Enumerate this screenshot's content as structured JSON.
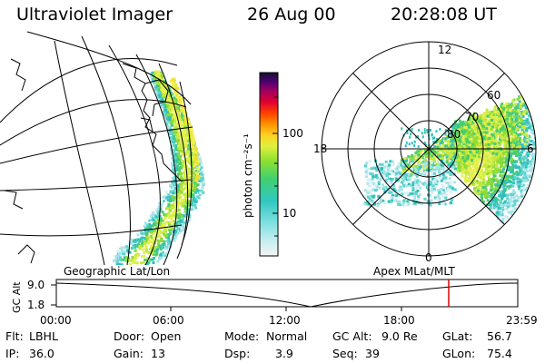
{
  "header": {
    "title": "Ultraviolet Imager",
    "date": "26 Aug 00",
    "time": "20:28:08 UT"
  },
  "colorbar": {
    "label": "photon cm⁻²s⁻¹",
    "ticks": [
      "100",
      "10"
    ]
  },
  "polar_plot": {
    "mlt_labels": {
      "top": "12",
      "left": "18",
      "right": "6",
      "bottom": "0"
    },
    "lat_labels": [
      "60",
      "70",
      "80"
    ]
  },
  "panel_labels": {
    "left": "Geographic Lat/Lon",
    "right": "Apex MLat/MLT"
  },
  "altitude_strip": {
    "axis_label": "GC Alt",
    "y_ticks": [
      "9.0",
      "1.8"
    ],
    "x_ticks": [
      "00:00",
      "06:00",
      "12:00",
      "18:00",
      "23:59"
    ],
    "marker_color": "#e00000"
  },
  "status": {
    "row1": [
      {
        "label": "Flt:",
        "value": "LBHL"
      },
      {
        "label": "Door:",
        "value": "Open"
      },
      {
        "label": "Mode:",
        "value": "Normal"
      },
      {
        "label": "GC Alt:",
        "value": "9.0 Re"
      },
      {
        "label": "GLat:",
        "value": "56.7"
      }
    ],
    "row2": [
      {
        "label": "IP:",
        "value": "36.0"
      },
      {
        "label": "Gain:",
        "value": "13"
      },
      {
        "label": "Dsp:",
        "value": "3.9"
      },
      {
        "label": "Seq:",
        "value": "39"
      },
      {
        "label": "GLon:",
        "value": "75.4"
      }
    ]
  }
}
